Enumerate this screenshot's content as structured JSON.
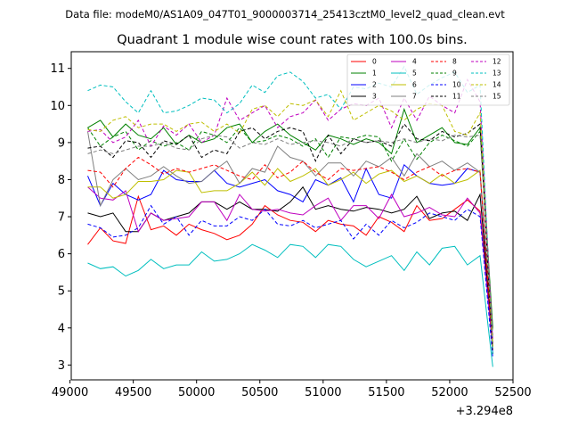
{
  "chart_data": {
    "type": "line",
    "suptitle": "Data file: modeM0/AS1A09_047T01_9000003714_25413cztM0_level2_quad_clean.evt",
    "title": "Quadrant 1 module wise count rates with 100.0s bins.",
    "xlabel": "",
    "ylabel": "",
    "x_offset_label": "+3.294e8",
    "xlim": [
      49010,
      52500
    ],
    "ylim": [
      2.6,
      11.45
    ],
    "xticks": [
      49000,
      49500,
      50000,
      50500,
      51000,
      51500,
      52000,
      52500
    ],
    "xtick_labels": [
      "49000",
      "49500",
      "50000",
      "50500",
      "51000",
      "51500",
      "52000",
      "52500"
    ],
    "yticks": [
      3,
      4,
      5,
      6,
      7,
      8,
      9,
      10,
      11
    ],
    "ytick_labels": [
      "3",
      "4",
      "5",
      "6",
      "7",
      "8",
      "9",
      "10",
      "11"
    ],
    "legend_position": "top-right",
    "x": [
      49140,
      49240,
      49340,
      49440,
      49540,
      49640,
      49740,
      49840,
      49940,
      50040,
      50140,
      50240,
      50340,
      50440,
      50540,
      50640,
      50740,
      50840,
      50940,
      51040,
      51140,
      51240,
      51340,
      51440,
      51540,
      51640,
      51740,
      51840,
      51940,
      52040,
      52140,
      52240,
      52340
    ],
    "series": [
      {
        "name": "0",
        "color": "#ff0000",
        "dash": "solid",
        "values": [
          6.25,
          6.7,
          6.35,
          6.28,
          7.55,
          6.65,
          6.75,
          6.5,
          6.8,
          6.65,
          6.55,
          6.38,
          6.5,
          6.8,
          7.3,
          7.05,
          6.9,
          6.85,
          6.6,
          6.9,
          6.8,
          6.75,
          6.5,
          7.0,
          6.85,
          6.6,
          7.3,
          6.9,
          6.95,
          7.2,
          7.45,
          7.15,
          3.6
        ]
      },
      {
        "name": "1",
        "color": "#008000",
        "dash": "solid",
        "values": [
          9.4,
          9.6,
          9.15,
          9.5,
          9.2,
          9.1,
          9.4,
          8.95,
          9.2,
          9.0,
          9.1,
          9.4,
          9.5,
          9.0,
          9.3,
          9.5,
          9.2,
          9.0,
          8.8,
          9.2,
          9.1,
          8.95,
          9.1,
          9.0,
          8.7,
          9.9,
          9.0,
          9.2,
          9.4,
          9.0,
          8.95,
          9.4,
          4.0
        ]
      },
      {
        "name": "2",
        "color": "#0000ff",
        "dash": "solid",
        "values": [
          8.1,
          7.3,
          7.9,
          7.6,
          7.45,
          7.6,
          8.25,
          8.0,
          7.95,
          7.95,
          8.25,
          7.9,
          7.8,
          7.9,
          8.0,
          7.7,
          7.6,
          7.4,
          8.0,
          7.85,
          8.05,
          7.4,
          8.3,
          7.6,
          7.5,
          8.4,
          8.1,
          7.9,
          7.85,
          7.9,
          8.3,
          8.2,
          3.3
        ]
      },
      {
        "name": "3",
        "color": "#000000",
        "dash": "solid",
        "values": [
          7.1,
          7.0,
          7.1,
          6.6,
          6.6,
          7.1,
          6.9,
          7.0,
          7.1,
          7.4,
          7.4,
          7.2,
          7.4,
          7.2,
          7.2,
          7.15,
          7.4,
          7.8,
          7.2,
          7.3,
          7.2,
          7.15,
          7.25,
          7.2,
          7.1,
          7.2,
          7.55,
          6.95,
          7.1,
          7.15,
          6.9,
          7.6,
          3.5
        ]
      },
      {
        "name": "4",
        "color": "#bf00bf",
        "dash": "solid",
        "values": [
          7.8,
          7.5,
          7.45,
          7.7,
          6.6,
          7.1,
          6.9,
          6.95,
          7.0,
          7.4,
          7.4,
          6.9,
          7.6,
          7.2,
          7.15,
          7.2,
          7.1,
          7.05,
          7.3,
          7.5,
          6.9,
          7.3,
          7.3,
          6.95,
          7.6,
          7.0,
          7.1,
          7.25,
          7.05,
          7.0,
          7.5,
          7.1,
          3.4
        ]
      },
      {
        "name": "5",
        "color": "#00bfbf",
        "dash": "solid",
        "values": [
          5.75,
          5.6,
          5.65,
          5.4,
          5.55,
          5.85,
          5.6,
          5.7,
          5.7,
          6.05,
          5.8,
          5.85,
          6.0,
          6.25,
          6.1,
          5.9,
          6.25,
          6.2,
          5.9,
          6.25,
          6.2,
          5.85,
          5.65,
          5.8,
          5.95,
          5.55,
          6.05,
          5.7,
          6.15,
          6.2,
          5.7,
          5.95,
          2.95
        ]
      },
      {
        "name": "6",
        "color": "#bfbf00",
        "dash": "solid",
        "values": [
          7.8,
          7.8,
          7.5,
          7.6,
          7.95,
          7.95,
          8.0,
          8.25,
          8.2,
          7.65,
          7.7,
          7.7,
          7.9,
          8.2,
          7.85,
          8.3,
          7.95,
          8.1,
          8.3,
          7.85,
          8.0,
          8.2,
          7.9,
          8.15,
          8.25,
          7.95,
          8.1,
          7.9,
          8.15,
          7.9,
          8.0,
          8.25,
          3.6
        ]
      },
      {
        "name": "7",
        "color": "#7f7f7f",
        "dash": "solid",
        "values": [
          9.3,
          7.3,
          8.0,
          8.3,
          8.0,
          8.1,
          8.35,
          8.1,
          7.9,
          7.95,
          8.25,
          8.5,
          7.9,
          8.3,
          8.2,
          8.9,
          8.6,
          8.5,
          8.1,
          8.45,
          8.45,
          8.1,
          8.5,
          8.35,
          8.6,
          8.1,
          8.7,
          8.35,
          8.5,
          8.25,
          8.45,
          8.2,
          3.7
        ]
      },
      {
        "name": "8",
        "color": "#ff0000",
        "dash": "dashed",
        "values": [
          8.25,
          8.2,
          7.8,
          8.3,
          8.6,
          8.4,
          8.15,
          8.3,
          8.2,
          8.3,
          8.4,
          8.25,
          8.1,
          8.0,
          8.4,
          8.05,
          8.2,
          8.5,
          8.2,
          8.0,
          8.3,
          8.25,
          8.3,
          8.35,
          8.2,
          8.0,
          8.2,
          8.35,
          8.1,
          8.25,
          8.3,
          8.2,
          3.4
        ]
      },
      {
        "name": "9",
        "color": "#008000",
        "dash": "dashed",
        "values": [
          9.4,
          8.9,
          9.15,
          9.3,
          8.8,
          9.05,
          8.9,
          9.0,
          8.8,
          9.3,
          9.2,
          9.0,
          9.4,
          9.0,
          9.05,
          9.2,
          9.1,
          8.9,
          9.1,
          8.6,
          9.15,
          9.1,
          9.2,
          9.15,
          8.5,
          9.1,
          8.55,
          9.0,
          9.2,
          9.05,
          8.9,
          9.3,
          3.9
        ]
      },
      {
        "name": "10",
        "color": "#0000ff",
        "dash": "dashed",
        "values": [
          6.8,
          6.7,
          6.45,
          6.5,
          6.7,
          7.3,
          6.8,
          7.0,
          6.5,
          6.9,
          6.75,
          6.75,
          7.0,
          6.9,
          7.2,
          6.8,
          6.75,
          6.9,
          6.7,
          6.8,
          6.9,
          6.4,
          6.8,
          6.5,
          6.9,
          6.7,
          6.85,
          7.1,
          7.0,
          6.9,
          7.2,
          7.0,
          3.2
        ]
      },
      {
        "name": "11",
        "color": "#000000",
        "dash": "dashed",
        "values": [
          8.85,
          8.9,
          8.6,
          9.05,
          9.0,
          8.6,
          9.05,
          8.95,
          9.2,
          8.6,
          8.8,
          8.7,
          9.3,
          9.4,
          9.1,
          9.3,
          9.4,
          9.3,
          8.5,
          9.2,
          8.7,
          9.1,
          9.0,
          9.05,
          8.9,
          9.5,
          9.1,
          9.05,
          9.3,
          9.15,
          9.25,
          9.5,
          3.3
        ]
      },
      {
        "name": "12",
        "color": "#bf00bf",
        "dash": "dashed",
        "values": [
          9.3,
          9.35,
          9.0,
          9.15,
          9.6,
          8.9,
          9.45,
          9.2,
          9.5,
          9.0,
          9.2,
          10.2,
          9.6,
          9.8,
          10.0,
          9.4,
          9.7,
          9.8,
          10.15,
          9.6,
          9.9,
          10.05,
          10.0,
          10.2,
          9.4,
          10.2,
          9.6,
          10.25,
          10.0,
          9.8,
          10.7,
          10.1,
          3.6
        ]
      },
      {
        "name": "13",
        "color": "#00bfbf",
        "dash": "dashed",
        "values": [
          10.4,
          10.55,
          10.5,
          10.1,
          9.8,
          10.4,
          9.8,
          9.85,
          10.0,
          10.2,
          10.15,
          9.8,
          10.05,
          10.55,
          10.35,
          10.8,
          10.9,
          10.65,
          10.2,
          10.3,
          9.9,
          10.5,
          10.45,
          10.6,
          10.5,
          11.05,
          10.3,
          10.55,
          10.75,
          10.9,
          10.35,
          10.55,
          3.3
        ]
      },
      {
        "name": "14",
        "color": "#bfbf00",
        "dash": "dashed",
        "values": [
          9.35,
          9.3,
          9.6,
          9.7,
          9.4,
          9.5,
          9.5,
          9.3,
          9.5,
          9.55,
          9.3,
          9.5,
          9.25,
          9.9,
          10.0,
          9.7,
          10.05,
          10.0,
          10.15,
          9.7,
          10.4,
          9.6,
          9.8,
          10.0,
          9.85,
          9.6,
          9.9,
          10.05,
          10.0,
          9.3,
          9.2,
          9.8,
          3.5
        ]
      },
      {
        "name": "15",
        "color": "#7f7f7f",
        "dash": "dashed",
        "values": [
          8.7,
          8.8,
          8.7,
          8.8,
          8.9,
          8.9,
          9.0,
          8.85,
          8.8,
          9.1,
          9.2,
          9.15,
          8.85,
          9.0,
          8.95,
          9.1,
          8.95,
          9.0,
          9.05,
          9.0,
          8.9,
          9.1,
          9.0,
          9.05,
          9.0,
          9.1,
          9.0,
          9.1,
          9.05,
          9.2,
          9.15,
          9.2,
          3.8
        ]
      }
    ]
  }
}
